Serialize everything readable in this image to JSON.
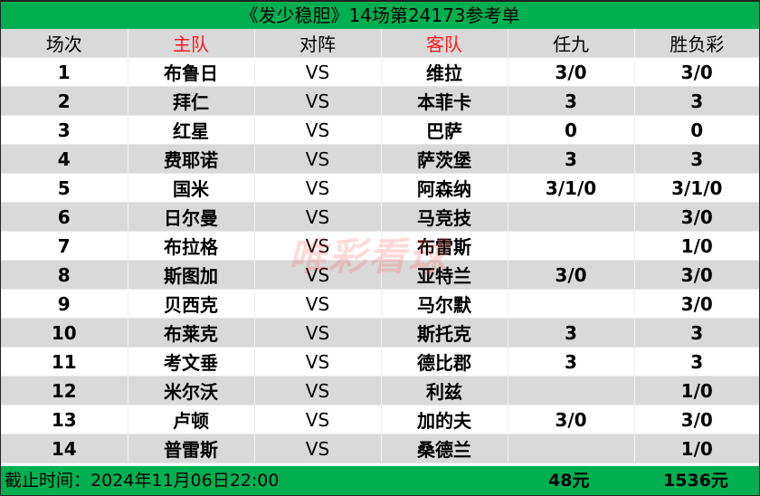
{
  "title": "《发少稳胆》14场第24173参考单",
  "headers": [
    "场次",
    "主队",
    "对阵",
    "客队",
    "任九",
    "胜负彩"
  ],
  "rows": [
    [
      "1",
      "布鲁日",
      "VS",
      "维拉",
      "3/0",
      "3/0"
    ],
    [
      "2",
      "拜仁",
      "VS",
      "本菲卡",
      "3",
      "3"
    ],
    [
      "3",
      "红星",
      "VS",
      "巴萨",
      "0",
      "0"
    ],
    [
      "4",
      "费耶诺",
      "VS",
      "萨茨堡",
      "3",
      "3"
    ],
    [
      "5",
      "国米",
      "VS",
      "阿森纳",
      "3/1/0",
      "3/1/0"
    ],
    [
      "6",
      "日尔曼",
      "VS",
      "马竞技",
      "",
      "3/0"
    ],
    [
      "7",
      "布拉格",
      "VS",
      "布雷斯",
      "",
      "1/0"
    ],
    [
      "8",
      "斯图加",
      "VS",
      "亚特兰",
      "3/0",
      "3/0"
    ],
    [
      "9",
      "贝西克",
      "VS",
      "马尔默",
      "",
      "3/0"
    ],
    [
      "10",
      "布莱克",
      "VS",
      "斯托克",
      "3",
      "3"
    ],
    [
      "11",
      "考文垂",
      "VS",
      "德比郡",
      "3",
      "3"
    ],
    [
      "12",
      "米尔沃",
      "VS",
      "利兹",
      "",
      "1/0"
    ],
    [
      "13",
      "卢顿",
      "VS",
      "加的夫",
      "3/0",
      "3/0"
    ],
    [
      "14",
      "普雷斯",
      "VS",
      "桑德兰",
      "",
      "1/0"
    ]
  ],
  "footer": {
    "deadline": "截止时间：2024年11月06日22:00",
    "renjiu_cost": "48元",
    "shengfucai_cost": "1536元"
  },
  "watermark": "唯彩看球",
  "colors": {
    "green": "#00b050",
    "header_red": "#ff1a1a",
    "gray": "#d9d9d9"
  }
}
